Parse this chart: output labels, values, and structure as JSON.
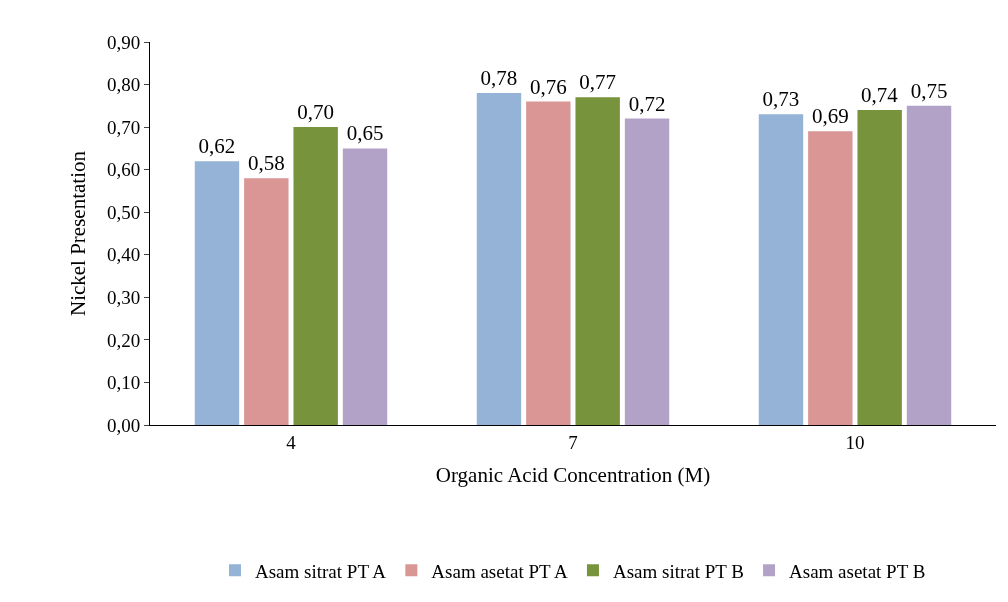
{
  "chart_data": {
    "type": "bar",
    "xlabel": "Organic Acid Concentration (M)",
    "ylabel": "Nickel Presentation",
    "categories": [
      "4",
      "7",
      "10"
    ],
    "series": [
      {
        "name": "Asam sitrat PT A",
        "color": "#95b3d7",
        "values": [
          0.62,
          0.78,
          0.73
        ],
        "value_labels": [
          "0,62",
          "0,78",
          "0,73"
        ]
      },
      {
        "name": "Asam asetat PT A",
        "color": "#d99694",
        "values": [
          0.58,
          0.76,
          0.69
        ],
        "value_labels": [
          "0,58",
          "0,76",
          "0,69"
        ]
      },
      {
        "name": "Asam sitrat PT B",
        "color": "#77933c",
        "values": [
          0.7,
          0.77,
          0.74
        ],
        "value_labels": [
          "0,70",
          "0,77",
          "0,74"
        ]
      },
      {
        "name": "Asam asetat PT B",
        "color": "#b3a2c7",
        "values": [
          0.65,
          0.72,
          0.75
        ],
        "value_labels": [
          "0,65",
          "0,72",
          "0,75"
        ]
      }
    ],
    "ylim": [
      0,
      0.9
    ],
    "yticks": [
      {
        "value": 0,
        "label": "0,00"
      },
      {
        "value": 0.1,
        "label": "0,10"
      },
      {
        "value": 0.2,
        "label": "0,20"
      },
      {
        "value": 0.3,
        "label": "0,30"
      },
      {
        "value": 0.4,
        "label": "0,40"
      },
      {
        "value": 0.5,
        "label": "0,50"
      },
      {
        "value": 0.6,
        "label": "0,60"
      },
      {
        "value": 0.7,
        "label": "0,70"
      },
      {
        "value": 0.8,
        "label": "0,80"
      },
      {
        "value": 0.9,
        "label": "0,90"
      }
    ],
    "legend": "bottom"
  }
}
